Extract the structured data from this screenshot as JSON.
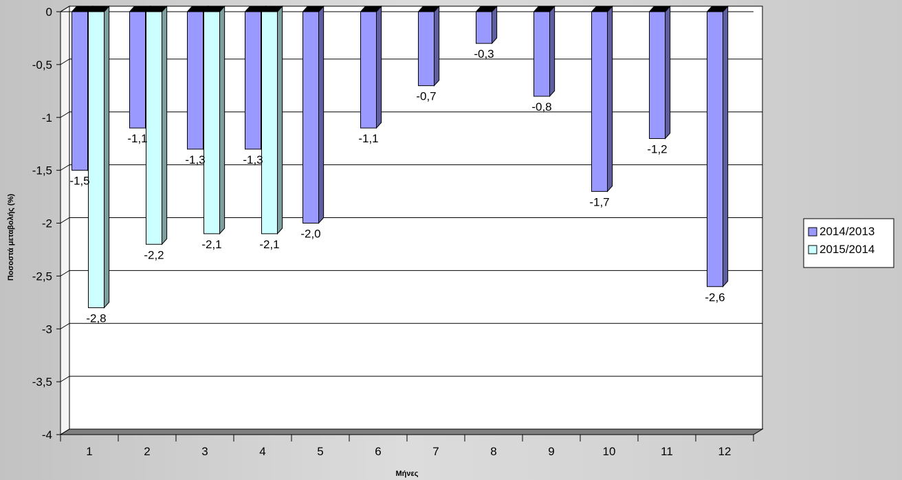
{
  "chart_data": {
    "type": "bar",
    "title": "",
    "xlabel": "Μήνες",
    "ylabel": "Ποσοστά μεταβολής (%)",
    "categories": [
      "1",
      "2",
      "3",
      "4",
      "5",
      "6",
      "7",
      "8",
      "9",
      "10",
      "11",
      "12"
    ],
    "ylim": [
      -4,
      0
    ],
    "yticks": [
      "0",
      "-0,5",
      "-1",
      "-1,5",
      "-2",
      "-2,5",
      "-3",
      "-3,5",
      "-4"
    ],
    "grid": true,
    "legend_position": "right",
    "series": [
      {
        "name": "2014/2013",
        "color": "#9999ff",
        "values": [
          -1.5,
          -1.1,
          -1.3,
          -1.3,
          -2.0,
          -1.1,
          -0.7,
          -0.3,
          -0.8,
          -1.7,
          -1.2,
          -2.6
        ],
        "labels": [
          "-1,5",
          "-1,1",
          "-1,3",
          "-1,3",
          "-2,0",
          "-1,1",
          "-0,7",
          "-0,3",
          "-0,8",
          "-1,7",
          "-1,2",
          "-2,6"
        ]
      },
      {
        "name": "2015/2014",
        "color": "#ccffff",
        "values": [
          -2.8,
          -2.2,
          -2.1,
          -2.1,
          null,
          null,
          null,
          null,
          null,
          null,
          null,
          null
        ],
        "labels": [
          "-2,8",
          "-2,2",
          "-2,1",
          "-2,1",
          "",
          "",
          "",
          "",
          "",
          "",
          "",
          ""
        ]
      }
    ]
  }
}
